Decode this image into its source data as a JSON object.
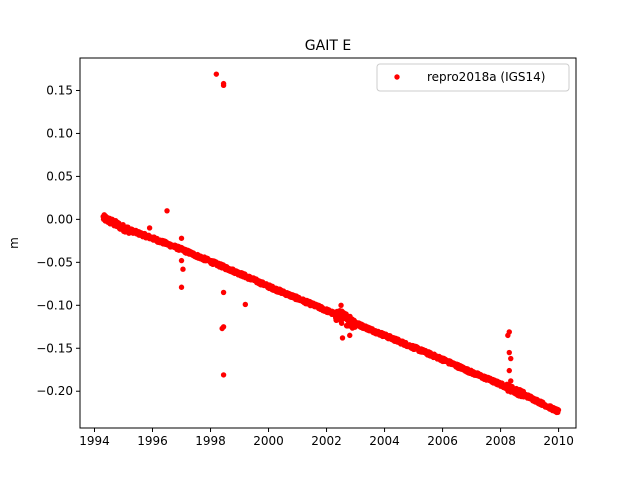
{
  "chart_data": {
    "type": "scatter",
    "title": "GAIT E",
    "xlabel": "",
    "ylabel": "m",
    "xlim": [
      1993.5,
      2010.6
    ],
    "ylim": [
      -0.2428,
      0.1878
    ],
    "xticks": [
      1994,
      1996,
      1998,
      2000,
      2002,
      2004,
      2006,
      2008,
      2010
    ],
    "xtick_labels": [
      "1994",
      "1996",
      "1998",
      "2000",
      "2002",
      "2004",
      "2006",
      "2008",
      "2010"
    ],
    "yticks": [
      -0.2,
      -0.15,
      -0.1,
      -0.05,
      0.0,
      0.05,
      0.1,
      0.15
    ],
    "ytick_labels": [
      "−0.20",
      "−0.15",
      "−0.10",
      "−0.05",
      "0.00",
      "0.05",
      "0.10",
      "0.15"
    ],
    "grid": false,
    "legend_position": "top-right",
    "series": [
      {
        "name": "repro2018a (IGS14)",
        "color": "#ff0000",
        "marker": "circle",
        "trend": {
          "x": [
            1994.3,
            1995.0,
            1996.0,
            1997.0,
            1998.0,
            1999.0,
            2000.0,
            2001.0,
            2002.0,
            2003.0,
            2004.0,
            2005.0,
            2006.0,
            2007.0,
            2008.0,
            2009.0,
            2010.0
          ],
          "y": [
            0.002,
            -0.01,
            -0.022,
            -0.035,
            -0.049,
            -0.063,
            -0.078,
            -0.092,
            -0.106,
            -0.121,
            -0.135,
            -0.149,
            -0.163,
            -0.178,
            -0.192,
            -0.207,
            -0.224
          ]
        },
        "scatter_note": "",
        "outliers": [
          {
            "x": 1998.2,
            "y": 0.169
          },
          {
            "x": 1998.45,
            "y": 0.158
          },
          {
            "x": 1998.45,
            "y": 0.156
          },
          {
            "x": 1996.5,
            "y": 0.01
          },
          {
            "x": 1995.9,
            "y": -0.01
          },
          {
            "x": 1997.0,
            "y": -0.022
          },
          {
            "x": 1997.0,
            "y": -0.048
          },
          {
            "x": 1997.05,
            "y": -0.058
          },
          {
            "x": 1997.0,
            "y": -0.079
          },
          {
            "x": 1998.45,
            "y": -0.085
          },
          {
            "x": 1999.2,
            "y": -0.099
          },
          {
            "x": 1998.45,
            "y": -0.125
          },
          {
            "x": 1998.4,
            "y": -0.127
          },
          {
            "x": 1998.45,
            "y": -0.181
          },
          {
            "x": 2002.5,
            "y": -0.1
          },
          {
            "x": 2002.55,
            "y": -0.138
          },
          {
            "x": 2002.8,
            "y": -0.135
          },
          {
            "x": 2008.3,
            "y": -0.131
          },
          {
            "x": 2008.25,
            "y": -0.135
          },
          {
            "x": 2008.3,
            "y": -0.155
          },
          {
            "x": 2008.35,
            "y": -0.162
          },
          {
            "x": 2008.3,
            "y": -0.176
          },
          {
            "x": 2008.35,
            "y": -0.188
          }
        ]
      }
    ]
  }
}
